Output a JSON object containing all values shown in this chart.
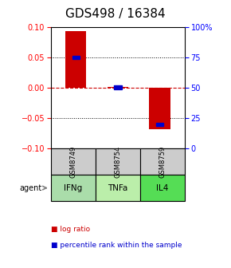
{
  "title": "GDS498 / 16384",
  "samples": [
    "GSM8749",
    "GSM8754",
    "GSM8759"
  ],
  "agents": [
    "IFNg",
    "TNFa",
    "IL4"
  ],
  "log_ratios": [
    0.093,
    0.001,
    -0.068
  ],
  "percentile_ranks": [
    75.0,
    50.5,
    20.0
  ],
  "ylim_left": [
    -0.1,
    0.1
  ],
  "ylim_right": [
    0,
    100
  ],
  "bar_color": "#cc0000",
  "dot_color": "#0000cc",
  "zero_line_color": "#cc0000",
  "sample_bg": "#cccccc",
  "agent_colors": [
    "#aaddaa",
    "#bbeeaa",
    "#55dd55"
  ],
  "yticks_left": [
    -0.1,
    -0.05,
    0,
    0.05,
    0.1
  ],
  "yticks_right": [
    0,
    25,
    50,
    75,
    100
  ],
  "title_fontsize": 11,
  "tick_fontsize": 7,
  "bar_width": 0.5
}
